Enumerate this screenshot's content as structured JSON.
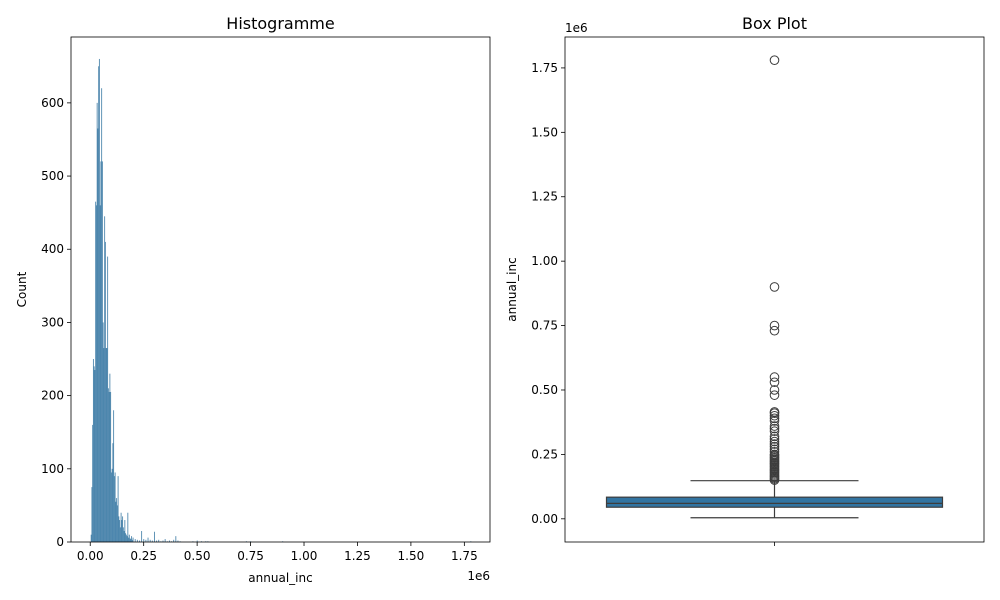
{
  "chart_data": [
    {
      "type": "histogram",
      "title": "Histogramme",
      "xlabel": "annual_inc",
      "ylabel": "Count",
      "x_offset_label": "1e6",
      "xlim": [
        -0.09,
        1.87
      ],
      "ylim": [
        0,
        690
      ],
      "x_ticks": [
        0.0,
        0.25,
        0.5,
        0.75,
        1.0,
        1.25,
        1.5,
        1.75
      ],
      "x_tick_labels": [
        "0.00",
        "0.25",
        "0.50",
        "0.75",
        "1.00",
        "1.25",
        "1.50",
        "1.75"
      ],
      "y_ticks": [
        0,
        100,
        200,
        300,
        400,
        500,
        600
      ],
      "y_tick_labels": [
        "0",
        "100",
        "200",
        "300",
        "400",
        "500",
        "600"
      ],
      "bin_width": 0.0035,
      "bins": [
        [
          0.004,
          10
        ],
        [
          0.0075,
          75
        ],
        [
          0.011,
          160
        ],
        [
          0.0145,
          250
        ],
        [
          0.018,
          240
        ],
        [
          0.0215,
          235
        ],
        [
          0.025,
          465
        ],
        [
          0.0285,
          460
        ],
        [
          0.032,
          600
        ],
        [
          0.0355,
          565
        ],
        [
          0.039,
          650
        ],
        [
          0.0425,
          660
        ],
        [
          0.046,
          460
        ],
        [
          0.0495,
          520
        ],
        [
          0.053,
          620
        ],
        [
          0.0565,
          520
        ],
        [
          0.06,
          300
        ],
        [
          0.0635,
          265
        ],
        [
          0.067,
          445
        ],
        [
          0.0705,
          410
        ],
        [
          0.074,
          265
        ],
        [
          0.0775,
          265
        ],
        [
          0.081,
          390
        ],
        [
          0.0845,
          210
        ],
        [
          0.088,
          205
        ],
        [
          0.0915,
          230
        ],
        [
          0.095,
          205
        ],
        [
          0.0985,
          95
        ],
        [
          0.102,
          100
        ],
        [
          0.1055,
          135
        ],
        [
          0.109,
          180
        ],
        [
          0.1125,
          90
        ],
        [
          0.116,
          95
        ],
        [
          0.1195,
          55
        ],
        [
          0.123,
          60
        ],
        [
          0.1265,
          50
        ],
        [
          0.13,
          90
        ],
        [
          0.1335,
          35
        ],
        [
          0.137,
          30
        ],
        [
          0.1405,
          20
        ],
        [
          0.144,
          40
        ],
        [
          0.1475,
          30
        ],
        [
          0.151,
          35
        ],
        [
          0.1545,
          20
        ],
        [
          0.158,
          15
        ],
        [
          0.1615,
          30
        ],
        [
          0.165,
          12
        ],
        [
          0.1685,
          10
        ],
        [
          0.172,
          8
        ],
        [
          0.1755,
          40
        ],
        [
          0.179,
          6
        ],
        [
          0.1825,
          10
        ],
        [
          0.186,
          5
        ],
        [
          0.1895,
          4
        ],
        [
          0.193,
          8
        ],
        [
          0.1965,
          3
        ],
        [
          0.2,
          6
        ],
        [
          0.21,
          4
        ],
        [
          0.22,
          3
        ],
        [
          0.23,
          2
        ],
        [
          0.24,
          15
        ],
        [
          0.25,
          4
        ],
        [
          0.26,
          3
        ],
        [
          0.27,
          6
        ],
        [
          0.28,
          3
        ],
        [
          0.29,
          2
        ],
        [
          0.3,
          14
        ],
        [
          0.31,
          2
        ],
        [
          0.32,
          3
        ],
        [
          0.33,
          1
        ],
        [
          0.34,
          2
        ],
        [
          0.35,
          4
        ],
        [
          0.36,
          1
        ],
        [
          0.37,
          2
        ],
        [
          0.38,
          1
        ],
        [
          0.39,
          3
        ],
        [
          0.4,
          8
        ],
        [
          0.41,
          2
        ],
        [
          0.42,
          1
        ],
        [
          0.48,
          1
        ],
        [
          0.5,
          2
        ],
        [
          0.52,
          1
        ],
        [
          0.54,
          1
        ],
        [
          0.55,
          1
        ],
        [
          0.73,
          1
        ],
        [
          0.75,
          1
        ],
        [
          0.9,
          1
        ],
        [
          1.78,
          1
        ]
      ]
    },
    {
      "type": "box",
      "title": "Box Plot",
      "ylabel": "annual_inc",
      "y_offset_label": "1e6",
      "ylim": [
        -0.09,
        1.87
      ],
      "y_ticks": [
        0.0,
        0.25,
        0.5,
        0.75,
        1.0,
        1.25,
        1.5,
        1.75
      ],
      "y_tick_labels": [
        "0.00",
        "0.25",
        "0.50",
        "0.75",
        "1.00",
        "1.25",
        "1.50",
        "1.75"
      ],
      "box": {
        "whisker_low": 0.004,
        "q1": 0.045,
        "median": 0.06,
        "q3": 0.084,
        "whisker_high": 0.148
      },
      "outliers": [
        0.15,
        0.155,
        0.16,
        0.165,
        0.17,
        0.175,
        0.18,
        0.185,
        0.19,
        0.195,
        0.2,
        0.205,
        0.21,
        0.215,
        0.22,
        0.225,
        0.23,
        0.235,
        0.24,
        0.245,
        0.25,
        0.26,
        0.27,
        0.28,
        0.29,
        0.3,
        0.31,
        0.32,
        0.34,
        0.35,
        0.36,
        0.38,
        0.39,
        0.4,
        0.41,
        0.415,
        0.48,
        0.5,
        0.53,
        0.55,
        0.73,
        0.75,
        0.9,
        1.78
      ],
      "color": "#3274a1"
    }
  ],
  "colors": {
    "bar": "#3274a1",
    "box": "#3274a1",
    "axis": "#000000"
  }
}
